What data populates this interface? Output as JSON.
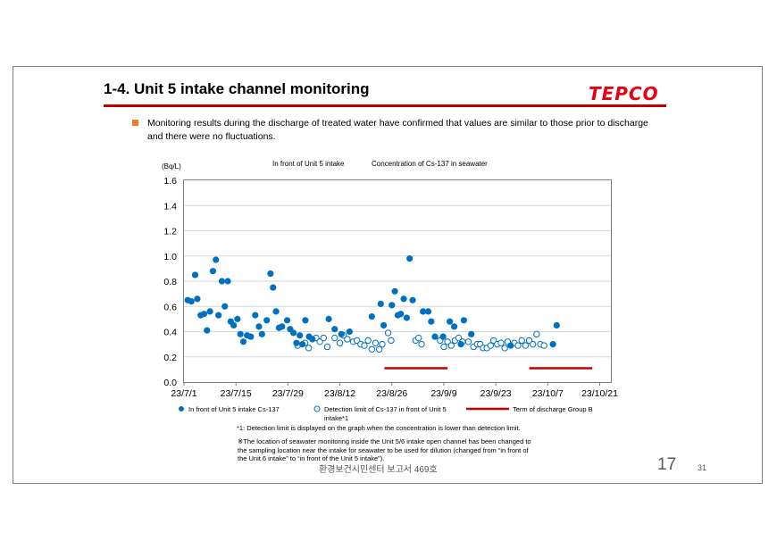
{
  "slide": {
    "title": "1-4. Unit 5 intake channel monitoring",
    "logo_text": "TEPCO",
    "bullet": "Monitoring results during the discharge of treated water have confirmed that values are similar to those prior to discharge and there were no fluctuations.",
    "note1": "*1: Detection limit is  displayed on the graph when the concentration is lower than detection limit.",
    "note2": "※The location of seawater monitoring inside the Unit 5/6 intake open channel has been changed to the sampling location near the intake for seawater to be used for dilution (changed from “in front of the Unit 6 intake” to “in front of the Unit 5 intake”).",
    "footer_kr": "환경보건시민센터 보고서 469호",
    "page_big": "17",
    "page_small": "31"
  },
  "colors": {
    "accent_red": "#c00000",
    "logo_red": "#e60012",
    "bullet_orange": "#ed7d31",
    "series_blue": "#0070c0"
  },
  "chart_data": {
    "type": "scatter",
    "title_left": "In front of Unit 5 intake",
    "title_right": "Concentration of Cs-137 in seawater",
    "ylabel": "(Bq/L)",
    "ylim": [
      0,
      1.6
    ],
    "yticks": [
      "0.0",
      "0.2",
      "0.4",
      "0.6",
      "0.8",
      "1.0",
      "1.2",
      "1.4",
      "1.6"
    ],
    "xlim": [
      0,
      115
    ],
    "xticks": [
      {
        "day": 0,
        "label": "23/7/1"
      },
      {
        "day": 14,
        "label": "23/7/15"
      },
      {
        "day": 28,
        "label": "23/7/29"
      },
      {
        "day": 42,
        "label": "23/8/12"
      },
      {
        "day": 56,
        "label": "23/8/26"
      },
      {
        "day": 70,
        "label": "23/9/9"
      },
      {
        "day": 84,
        "label": "23/9/23"
      },
      {
        "day": 98,
        "label": "23/10/7"
      },
      {
        "day": 112,
        "label": "23/10/21"
      }
    ],
    "legend": {
      "detected": "In front of Unit 5 intake  Cs-137",
      "limit": "Detection limit of Cs-137 in front of Unit 5",
      "limit_line2": "intake*1",
      "discharge": "Term of discharge Group B"
    },
    "discharge_periods": [
      [
        54,
        71
      ],
      [
        93,
        110
      ]
    ],
    "detected": [
      [
        1,
        0.65
      ],
      [
        2,
        0.64
      ],
      [
        3,
        0.85
      ],
      [
        3.6,
        0.66
      ],
      [
        4.5,
        0.53
      ],
      [
        5.4,
        0.54
      ],
      [
        6.2,
        0.41
      ],
      [
        7,
        0.56
      ],
      [
        7.8,
        0.88
      ],
      [
        8.6,
        0.97
      ],
      [
        9.3,
        0.53
      ],
      [
        10.2,
        0.8
      ],
      [
        11,
        0.6
      ],
      [
        11.8,
        0.8
      ],
      [
        12.6,
        0.48
      ],
      [
        13.4,
        0.45
      ],
      [
        14.4,
        0.5
      ],
      [
        15.2,
        0.38
      ],
      [
        16,
        0.32
      ],
      [
        17,
        0.37
      ],
      [
        18,
        0.36
      ],
      [
        19.2,
        0.53
      ],
      [
        20.2,
        0.44
      ],
      [
        21,
        0.38
      ],
      [
        22.3,
        0.49
      ],
      [
        23.3,
        0.86
      ],
      [
        24,
        0.75
      ],
      [
        24.8,
        0.56
      ],
      [
        25.6,
        0.43
      ],
      [
        26.4,
        0.44
      ],
      [
        27.8,
        0.49
      ],
      [
        28.6,
        0.42
      ],
      [
        29.5,
        0.39
      ],
      [
        30.3,
        0.31
      ],
      [
        31.2,
        0.37
      ],
      [
        31.9,
        0.3
      ],
      [
        32.7,
        0.49
      ],
      [
        33.7,
        0.36
      ],
      [
        34.6,
        0.34
      ],
      [
        39,
        0.5
      ],
      [
        40.6,
        0.42
      ],
      [
        42.4,
        0.38
      ],
      [
        44.6,
        0.4
      ],
      [
        50.6,
        0.52
      ],
      [
        53,
        0.62
      ],
      [
        53.8,
        0.45
      ],
      [
        56,
        0.61
      ],
      [
        56.8,
        0.72
      ],
      [
        57.6,
        0.53
      ],
      [
        58.4,
        0.54
      ],
      [
        59.2,
        0.66
      ],
      [
        60,
        0.51
      ],
      [
        60.8,
        0.98
      ],
      [
        61.6,
        0.65
      ],
      [
        64.4,
        0.56
      ],
      [
        65.8,
        0.56
      ],
      [
        66.6,
        0.48
      ],
      [
        67.6,
        0.36
      ],
      [
        69.8,
        0.36
      ],
      [
        71.6,
        0.48
      ],
      [
        72.8,
        0.44
      ],
      [
        74.6,
        0.3
      ],
      [
        75.4,
        0.49
      ],
      [
        77.4,
        0.38
      ],
      [
        88,
        0.29
      ],
      [
        99.4,
        0.3
      ],
      [
        100.4,
        0.45
      ]
    ],
    "limit": [
      [
        30.6,
        0.29
      ],
      [
        32.6,
        0.31
      ],
      [
        33.6,
        0.27
      ],
      [
        35.6,
        0.35
      ],
      [
        36.6,
        0.32
      ],
      [
        37.6,
        0.35
      ],
      [
        38.6,
        0.28
      ],
      [
        40.6,
        0.35
      ],
      [
        42,
        0.31
      ],
      [
        43,
        0.37
      ],
      [
        44,
        0.34
      ],
      [
        45.6,
        0.32
      ],
      [
        46.6,
        0.33
      ],
      [
        47.6,
        0.3
      ],
      [
        48.6,
        0.29
      ],
      [
        49.6,
        0.33
      ],
      [
        50.6,
        0.26
      ],
      [
        51.6,
        0.31
      ],
      [
        52.6,
        0.26
      ],
      [
        53.4,
        0.3
      ],
      [
        55,
        0.39
      ],
      [
        55.8,
        0.33
      ],
      [
        62.4,
        0.33
      ],
      [
        63.2,
        0.35
      ],
      [
        64,
        0.3
      ],
      [
        69,
        0.33
      ],
      [
        70,
        0.28
      ],
      [
        71,
        0.32
      ],
      [
        72,
        0.29
      ],
      [
        73,
        0.33
      ],
      [
        74,
        0.35
      ],
      [
        75,
        0.32
      ],
      [
        76.6,
        0.32
      ],
      [
        78,
        0.28
      ],
      [
        79,
        0.3
      ],
      [
        79.8,
        0.3
      ],
      [
        80.6,
        0.27
      ],
      [
        81.6,
        0.27
      ],
      [
        82.6,
        0.29
      ],
      [
        83.4,
        0.33
      ],
      [
        84.4,
        0.3
      ],
      [
        85.4,
        0.31
      ],
      [
        86.4,
        0.27
      ],
      [
        87.2,
        0.32
      ],
      [
        89,
        0.31
      ],
      [
        90,
        0.29
      ],
      [
        91,
        0.33
      ],
      [
        92,
        0.29
      ],
      [
        93,
        0.33
      ],
      [
        94,
        0.3
      ],
      [
        95,
        0.38
      ],
      [
        96,
        0.3
      ],
      [
        97,
        0.29
      ]
    ]
  }
}
